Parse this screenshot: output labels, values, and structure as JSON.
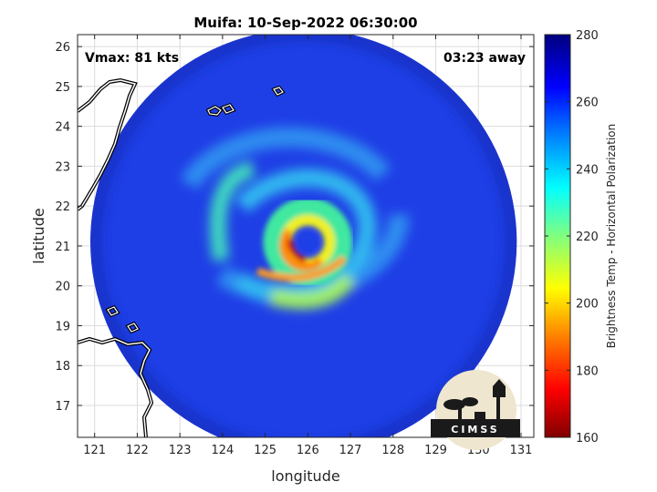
{
  "chart_data": {
    "type": "heatmap",
    "title": "Muifa: 10-Sep-2022 06:30:00",
    "xlabel": "longitude",
    "ylabel": "latitude",
    "xlim": [
      120.6,
      131.3
    ],
    "ylim": [
      16.2,
      26.3
    ],
    "xticks": [
      121,
      122,
      123,
      124,
      125,
      126,
      127,
      128,
      129,
      130,
      131
    ],
    "yticks": [
      17,
      18,
      19,
      20,
      21,
      22,
      23,
      24,
      25,
      26
    ],
    "grid": true,
    "annotations": {
      "vmax": "Vmax: 81 kts",
      "time_away": "03:23 away"
    },
    "storm_center": {
      "lon": 126.0,
      "lat": 21.1
    },
    "swath": {
      "center_lon": 125.9,
      "center_lat": 21.1,
      "radius_deg": 5.0
    },
    "colorbar": {
      "label": "Brightness Temp - Horizontal Polarization",
      "min": 160,
      "max": 280,
      "ticks": [
        160,
        180,
        200,
        220,
        240,
        260,
        280
      ],
      "colormap": "jet"
    },
    "logo": "CIMSS"
  }
}
